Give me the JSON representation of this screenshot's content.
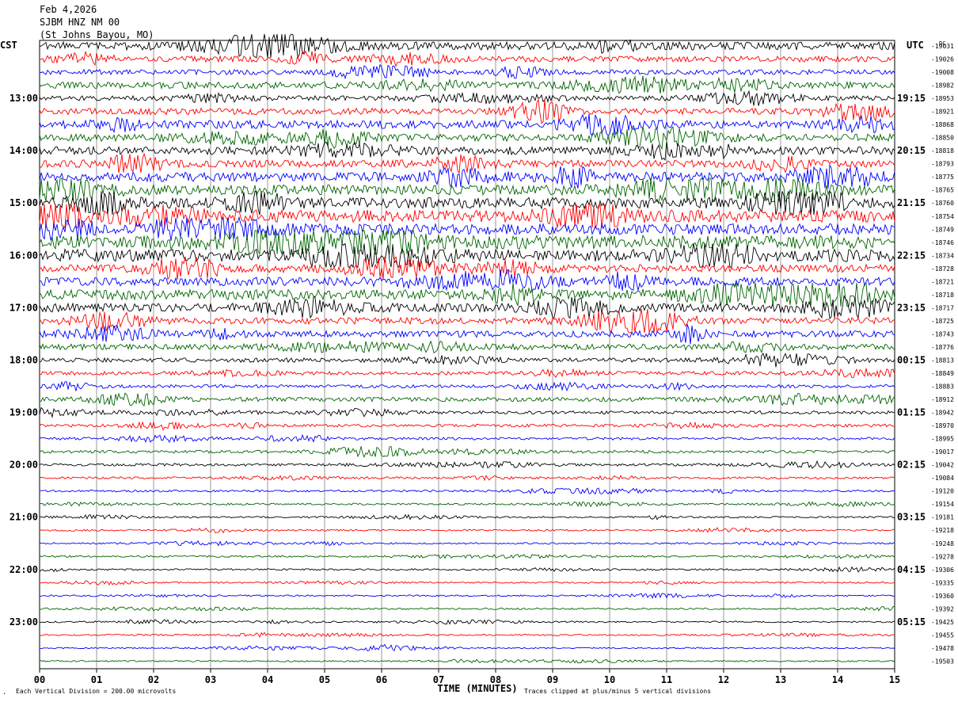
{
  "header": {
    "date": "Feb 4,2026",
    "station": "SJBM HNZ NM 00",
    "location": "(St Johns Bayou, MO)"
  },
  "left_timezone": "CST",
  "right_timezone": "UTC",
  "dc_label": "DC",
  "footer": {
    "scale_note": "Each Vertical Division =  200.00 microvolts",
    "clip_note": "Traces clipped at plus/minus 5 vertical divisions",
    "mark": "."
  },
  "colors": {
    "background": "#ffffff",
    "grid": "#808080",
    "trace_cycle": [
      "#000000",
      "#ff0000",
      "#0000ff",
      "#006400"
    ]
  },
  "chart_data": {
    "type": "line",
    "xlabel": "TIME (MINUTES)",
    "x_ticks": [
      "00",
      "01",
      "02",
      "03",
      "04",
      "05",
      "06",
      "07",
      "08",
      "09",
      "10",
      "11",
      "12",
      "13",
      "14",
      "15"
    ],
    "xlim": [
      0,
      15
    ],
    "grid": true,
    "traces_per_row_label": 4,
    "left_hour_labels": [
      "13:00",
      "14:00",
      "15:00",
      "16:00",
      "17:00",
      "18:00",
      "19:00",
      "20:00",
      "21:00",
      "22:00",
      "23:00"
    ],
    "right_hour_labels": [
      "19:15",
      "20:15",
      "21:15",
      "22:15",
      "23:15",
      "00:15",
      "01:15",
      "02:15",
      "03:15",
      "04:15",
      "05:15"
    ],
    "dc_offsets": [
      -19031,
      -19026,
      -19008,
      -18982,
      -18953,
      -18921,
      -18868,
      -18850,
      -18818,
      -18793,
      -18775,
      -18765,
      -18760,
      -18754,
      -18749,
      -18746,
      -18734,
      -18728,
      -18721,
      -18718,
      -18717,
      -18725,
      -18743,
      -18776,
      -18813,
      -18849,
      -18883,
      -18912,
      -18942,
      -18970,
      -18995,
      -19017,
      -19042,
      -19084,
      -19120,
      -19154,
      -19181,
      -19218,
      -19248,
      -19278,
      -19306,
      -19335,
      -19360,
      -19392,
      -19425,
      -19455,
      -19478,
      -19503
    ],
    "noise_level_divisions": [
      0.55,
      0.4,
      0.35,
      0.45,
      0.35,
      0.45,
      0.55,
      0.5,
      0.55,
      0.5,
      0.65,
      0.7,
      0.75,
      0.85,
      0.75,
      0.95,
      0.85,
      0.55,
      0.6,
      0.7,
      0.6,
      0.45,
      0.45,
      0.4,
      0.3,
      0.25,
      0.22,
      0.3,
      0.22,
      0.2,
      0.18,
      0.2,
      0.18,
      0.15,
      0.14,
      0.13,
      0.12,
      0.12,
      0.12,
      0.12,
      0.12,
      0.11,
      0.11,
      0.11,
      0.11,
      0.11,
      0.1,
      0.1
    ]
  }
}
